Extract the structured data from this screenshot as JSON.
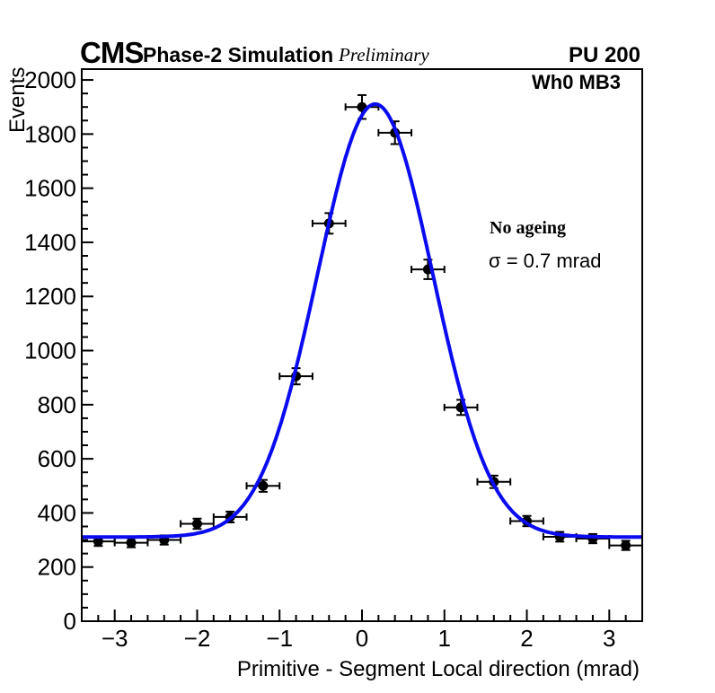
{
  "header": {
    "experiment": "CMS",
    "sim_label": "Phase-2 Simulation",
    "preliminary": "Preliminary",
    "pileup": "PU 200"
  },
  "annotations": {
    "chamber": "Wh0 MB3",
    "ageing": "No ageing",
    "sigma": "σ = 0.7 mrad"
  },
  "chart_data": {
    "type": "scatter",
    "title": "",
    "xlabel": "Primitive - Segment Local direction (mrad)",
    "ylabel": "Events",
    "xlim": [
      -3.4,
      3.4
    ],
    "ylim": [
      0,
      2040
    ],
    "grid": false,
    "x_major_ticks": [
      -3,
      -2,
      -1,
      0,
      1,
      2,
      3
    ],
    "x_minor_step": 0.2,
    "y_major_ticks": [
      0,
      200,
      400,
      600,
      800,
      1000,
      1200,
      1400,
      1600,
      1800,
      2000
    ],
    "y_minor_step": 50,
    "points": {
      "x": [
        -3.2,
        -2.8,
        -2.4,
        -2.0,
        -1.6,
        -1.2,
        -0.8,
        -0.4,
        0.0,
        0.4,
        0.8,
        1.2,
        1.6,
        2.0,
        2.4,
        2.8,
        3.2
      ],
      "y": [
        295,
        290,
        300,
        360,
        385,
        500,
        905,
        1470,
        1900,
        1805,
        1300,
        790,
        515,
        370,
        312,
        305,
        280
      ],
      "xerr": 0.2,
      "yerr": [
        17,
        17,
        17,
        19,
        20,
        22,
        30,
        38,
        44,
        42,
        36,
        28,
        23,
        19,
        18,
        17,
        17
      ]
    },
    "fit": {
      "model": "gaussian_plus_constant",
      "baseline": 311,
      "amplitude": 1600,
      "mean": 0.16,
      "sigma_mrad": 0.7
    },
    "colors": {
      "fit_curve": "#0b0bf0",
      "markers": "#000000",
      "frame": "#000000"
    }
  }
}
